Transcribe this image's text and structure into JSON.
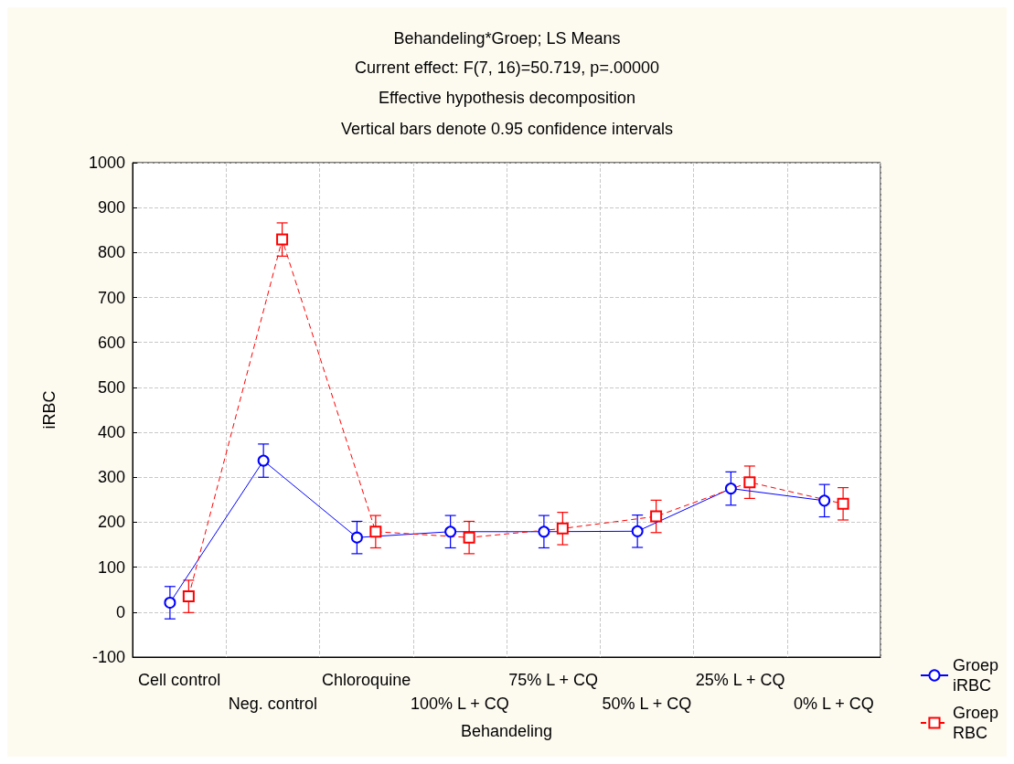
{
  "chart_data": {
    "type": "line",
    "title": "Behandeling*Groep; LS Means",
    "subtitle": "Current effect: F(7, 16)=50.719, p=.00000",
    "annotations": [
      "Effective hypothesis decomposition",
      "Vertical bars denote 0.95 confidence intervals"
    ],
    "xlabel": "Behandeling",
    "ylabel": "iRBC",
    "categories": [
      "Cell control",
      "Neg. control",
      "Chloroquine",
      "100% L + CQ",
      "75% L + CQ",
      "50% L + CQ",
      "25% L + CQ",
      "0% L + CQ"
    ],
    "series": [
      {
        "name": "Groep iRBC",
        "color": "#0000ff",
        "marker": "circle",
        "line_style": "solid",
        "values": [
          21,
          337,
          166,
          179,
          179,
          180,
          275,
          248
        ],
        "errors": [
          36,
          37,
          36,
          36,
          36,
          36,
          37,
          36
        ]
      },
      {
        "name": "Groep RBC",
        "color": "#ff0000",
        "marker": "square",
        "line_style": "dashed",
        "values": [
          35,
          829,
          179,
          166,
          186,
          213,
          289,
          241
        ],
        "errors": [
          36,
          37,
          36,
          36,
          36,
          36,
          36,
          36
        ]
      }
    ],
    "ylim": [
      -100,
      1000
    ],
    "yticks": [
      -100,
      0,
      100,
      200,
      300,
      400,
      500,
      600,
      700,
      800,
      900,
      1000
    ],
    "grid": true,
    "legend": "bottom right"
  }
}
